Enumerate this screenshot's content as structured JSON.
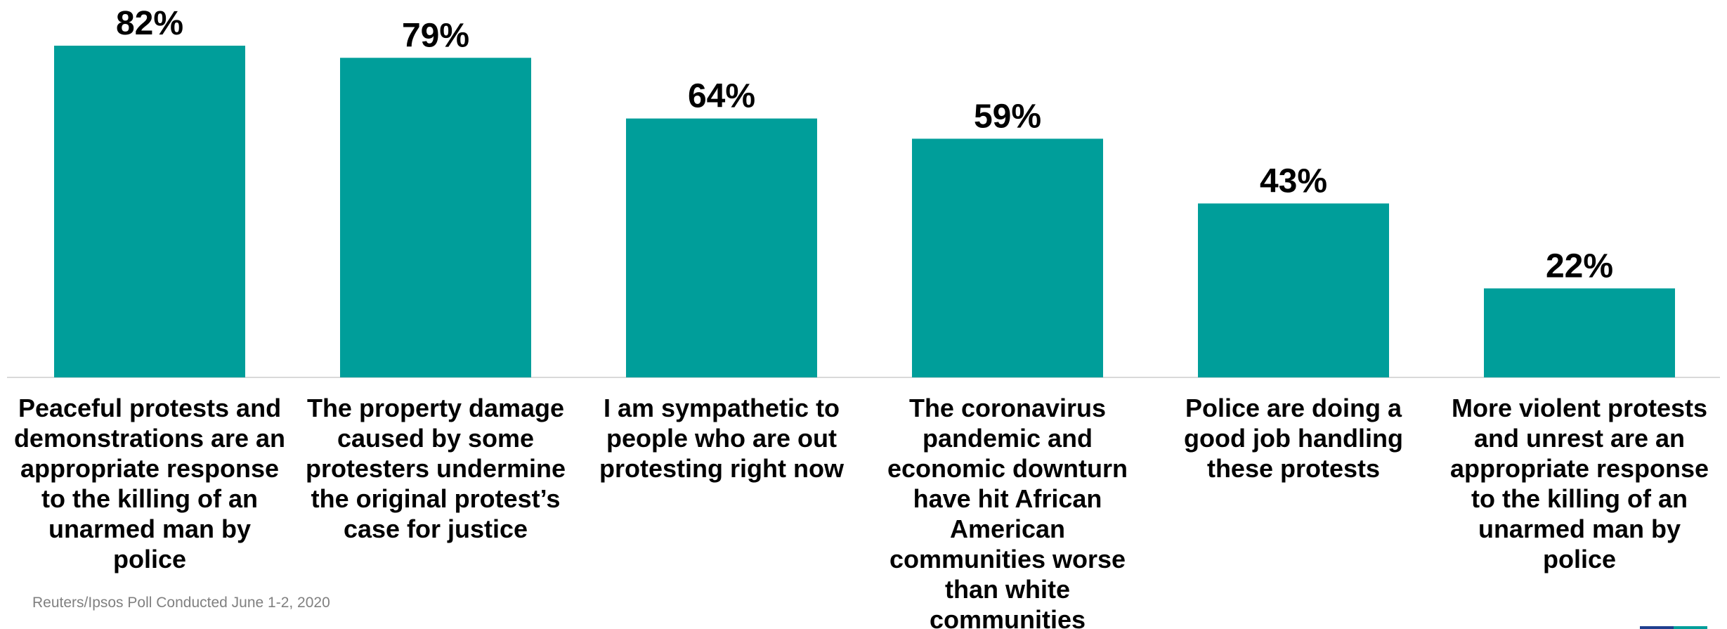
{
  "chart_data": {
    "type": "bar",
    "categories": [
      [
        "Peaceful protests and",
        "demonstrations are an",
        "appropriate response",
        "to the killing of an",
        "unarmed man by",
        "police"
      ],
      [
        "The property damage",
        "caused by some",
        "protesters undermine",
        "the original protest’s",
        "case for justice"
      ],
      [
        "I am sympathetic to",
        "people who are out",
        "protesting right now"
      ],
      [
        "The coronavirus",
        "pandemic and",
        "economic downturn",
        "have hit African",
        "American",
        "communities worse",
        "than white",
        "communities"
      ],
      [
        "Police are doing a",
        "good job handling",
        "these protests"
      ],
      [
        "More violent protests",
        "and unrest are an",
        "appropriate response",
        "to the killing of an",
        "unarmed man by",
        "police"
      ]
    ],
    "values": [
      82,
      79,
      64,
      59,
      43,
      22
    ],
    "value_labels": [
      "82%",
      "79%",
      "64%",
      "59%",
      "43%",
      "22%"
    ],
    "ylim": [
      0,
      100
    ],
    "grid": false,
    "legend": "none",
    "bar_color": "#009e9a"
  },
  "source_note": "Reuters/Ipsos Poll Conducted June 1-2, 2020",
  "logo_colors": [
    "#1f3f8f",
    "#009e9a"
  ]
}
